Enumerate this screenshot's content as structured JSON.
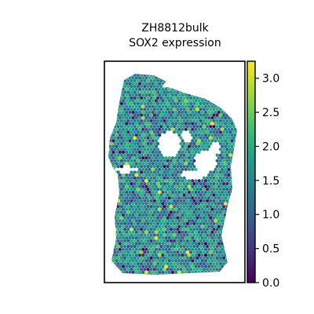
{
  "chart_data": {
    "type": "heatmap",
    "plot_kind": "spatial spot plot",
    "title_lines": [
      "ZH8812bulk",
      "SOX2 expression"
    ],
    "xlabel": "",
    "ylabel": "",
    "colormap": "viridis",
    "colorbar": {
      "range": [
        0.0,
        3.25
      ],
      "ticks": [
        0.0,
        0.5,
        1.0,
        1.5,
        2.0,
        2.5,
        3.0
      ],
      "tick_labels": [
        "0.0",
        "0.5",
        "1.0",
        "1.5",
        "2.0",
        "2.5",
        "3.0"
      ]
    },
    "value_distribution": {
      "typical_range": [
        0.8,
        2.2
      ],
      "max": 3.2,
      "min": 0.0
    }
  },
  "colors": {
    "viridis": [
      "#440154",
      "#482878",
      "#3e4989",
      "#31688e",
      "#26828e",
      "#1f9e89",
      "#35b779",
      "#6ece58",
      "#b5de2b",
      "#fde725"
    ]
  }
}
